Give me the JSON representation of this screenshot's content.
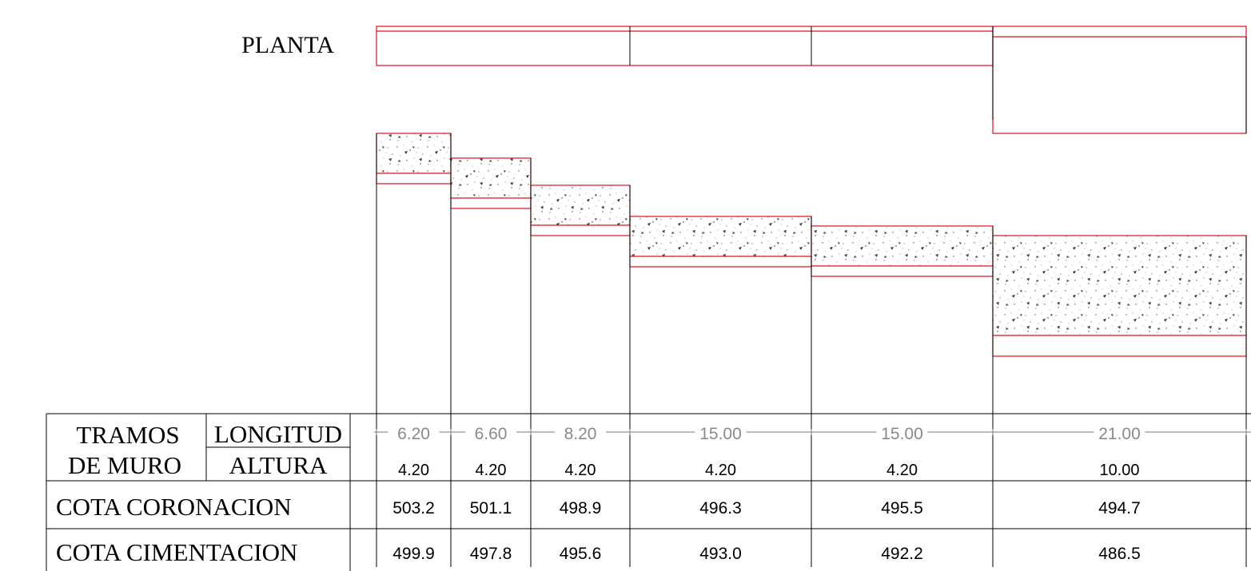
{
  "labels": {
    "planta": "PLANTA",
    "tramos": "TRAMOS",
    "de_muro": "DE  MURO",
    "longitud": "LONGITUD",
    "altura": "ALTURA",
    "cota_coronacion": "COTA  CORONACION",
    "cota_cimentacion": "COTA  CIMENTACION"
  },
  "tramos": [
    {
      "longitud": "6.20",
      "altura": "4.20",
      "coronacion": "503.2",
      "cimentacion": "499.9"
    },
    {
      "longitud": "6.60",
      "altura": "4.20",
      "coronacion": "501.1",
      "cimentacion": "497.8"
    },
    {
      "longitud": "8.20",
      "altura": "4.20",
      "coronacion": "498.9",
      "cimentacion": "495.6"
    },
    {
      "longitud": "15.00",
      "altura": "4.20",
      "coronacion": "496.3",
      "cimentacion": "493.0"
    },
    {
      "longitud": "15.00",
      "altura": "4.20",
      "coronacion": "495.5",
      "cimentacion": "492.2"
    },
    {
      "longitud": "21.00",
      "altura": "10.00",
      "coronacion": "494.7",
      "cimentacion": "486.5"
    }
  ],
  "colors": {
    "wall_outline": "#e0121b",
    "line": "#000000",
    "dimension": "#8a8a8a"
  }
}
